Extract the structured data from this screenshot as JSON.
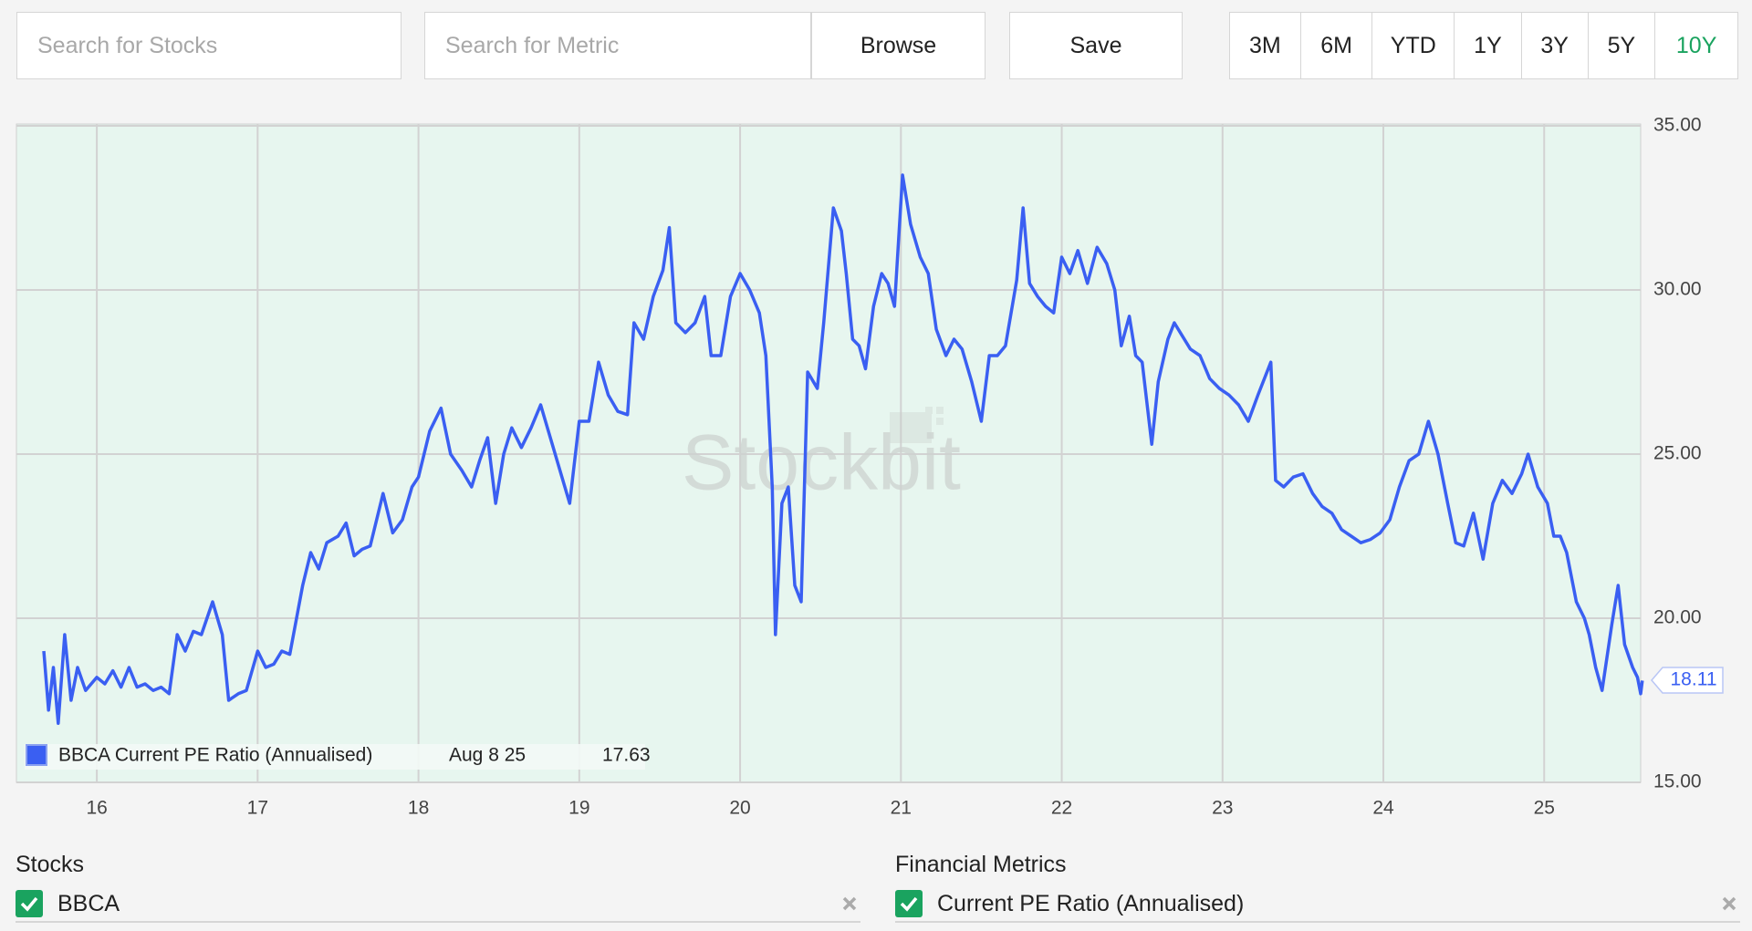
{
  "search": {
    "stocks_placeholder": "Search for Stocks",
    "metric_placeholder": "Search for Metric"
  },
  "buttons": {
    "browse": "Browse",
    "save": "Save"
  },
  "ranges": [
    "3M",
    "6M",
    "YTD",
    "1Y",
    "3Y",
    "5Y",
    "10Y"
  ],
  "active_range": "10Y",
  "watermark": "Stockbit",
  "chart_data": {
    "type": "line",
    "x": [
      15.67,
      15.7,
      15.73,
      15.76,
      15.8,
      15.84,
      15.88,
      15.93,
      16.0,
      16.05,
      16.1,
      16.15,
      16.2,
      16.25,
      16.3,
      16.35,
      16.4,
      16.45,
      16.5,
      16.55,
      16.6,
      16.65,
      16.72,
      16.78,
      16.82,
      16.88,
      16.93,
      17.0,
      17.05,
      17.1,
      17.15,
      17.2,
      17.28,
      17.33,
      17.38,
      17.43,
      17.5,
      17.55,
      17.6,
      17.65,
      17.7,
      17.78,
      17.84,
      17.9,
      17.96,
      18.0,
      18.07,
      18.14,
      18.2,
      18.27,
      18.33,
      18.38,
      18.43,
      18.48,
      18.53,
      18.58,
      18.64,
      18.7,
      18.76,
      18.82,
      18.88,
      18.94,
      19.0,
      19.06,
      19.12,
      19.18,
      19.24,
      19.3,
      19.34,
      19.4,
      19.46,
      19.52,
      19.56,
      19.6,
      19.66,
      19.72,
      19.78,
      19.82,
      19.88,
      19.94,
      20.0,
      20.06,
      20.12,
      20.16,
      20.2,
      20.22,
      20.26,
      20.3,
      20.34,
      20.38,
      20.42,
      20.48,
      20.52,
      20.58,
      20.63,
      20.66,
      20.7,
      20.74,
      20.78,
      20.83,
      20.88,
      20.92,
      20.96,
      21.01,
      21.06,
      21.12,
      21.17,
      21.22,
      21.28,
      21.33,
      21.38,
      21.44,
      21.5,
      21.55,
      21.6,
      21.65,
      21.72,
      21.76,
      21.8,
      21.85,
      21.9,
      21.95,
      22.0,
      22.05,
      22.1,
      22.16,
      22.22,
      22.28,
      22.33,
      22.37,
      22.42,
      22.46,
      22.5,
      22.56,
      22.6,
      22.66,
      22.7,
      22.75,
      22.8,
      22.86,
      22.92,
      22.98,
      23.04,
      23.1,
      23.16,
      23.22,
      23.3,
      23.33,
      23.38,
      23.44,
      23.5,
      23.56,
      23.62,
      23.68,
      23.74,
      23.8,
      23.86,
      23.92,
      23.98,
      24.04,
      24.1,
      24.16,
      24.22,
      24.28,
      24.34,
      24.4,
      24.45,
      24.5,
      24.56,
      24.62,
      24.68,
      24.74,
      24.8,
      24.86,
      24.9,
      24.96,
      25.02,
      25.06,
      25.1,
      25.14,
      25.2,
      25.25,
      25.28,
      25.32,
      25.36,
      25.42,
      25.46,
      25.5,
      25.55,
      25.58,
      25.6,
      25.61
    ],
    "series": [
      {
        "name": "BBCA Current PE Ratio (Annualised)",
        "color": "#3a5ff2",
        "values": [
          19.0,
          17.2,
          18.5,
          16.8,
          19.5,
          17.5,
          18.5,
          17.8,
          18.2,
          18.0,
          18.4,
          17.9,
          18.5,
          17.9,
          18.0,
          17.8,
          17.9,
          17.7,
          19.5,
          19.0,
          19.6,
          19.5,
          20.5,
          19.5,
          17.5,
          17.7,
          17.8,
          19.0,
          18.5,
          18.6,
          19.0,
          18.9,
          21.0,
          22.0,
          21.5,
          22.3,
          22.5,
          22.9,
          21.9,
          22.1,
          22.2,
          23.8,
          22.6,
          23.0,
          24.0,
          24.3,
          25.7,
          26.4,
          25.0,
          24.5,
          24.0,
          24.8,
          25.5,
          23.5,
          25.0,
          25.8,
          25.2,
          25.8,
          26.5,
          25.5,
          24.5,
          23.5,
          26.0,
          26.0,
          27.8,
          26.8,
          26.3,
          26.2,
          29.0,
          28.5,
          29.8,
          30.6,
          31.9,
          29.0,
          28.7,
          29.0,
          29.8,
          28.0,
          28.0,
          29.8,
          30.5,
          30.0,
          29.3,
          28.0,
          24.0,
          19.5,
          23.5,
          24.0,
          21.0,
          20.5,
          27.5,
          27.0,
          29.0,
          32.5,
          31.8,
          30.5,
          28.5,
          28.3,
          27.6,
          29.5,
          30.5,
          30.2,
          29.5,
          33.5,
          32.0,
          31.0,
          30.5,
          28.8,
          28.0,
          28.5,
          28.2,
          27.2,
          26.0,
          28.0,
          28.0,
          28.3,
          30.3,
          32.5,
          30.2,
          29.8,
          29.5,
          29.3,
          31.0,
          30.5,
          31.2,
          30.2,
          31.3,
          30.8,
          30.0,
          28.3,
          29.2,
          28.0,
          27.8,
          25.3,
          27.2,
          28.5,
          29.0,
          28.6,
          28.2,
          28.0,
          27.3,
          27.0,
          26.8,
          26.5,
          26.0,
          26.8,
          27.8,
          24.2,
          24.0,
          24.3,
          24.4,
          23.8,
          23.4,
          23.2,
          22.7,
          22.5,
          22.3,
          22.4,
          22.6,
          23.0,
          24.0,
          24.8,
          25.0,
          26.0,
          25.0,
          23.5,
          22.3,
          22.2,
          23.2,
          21.8,
          23.5,
          24.2,
          23.8,
          24.4,
          25.0,
          24.0,
          23.5,
          22.5,
          22.5,
          22.0,
          20.5,
          20.0,
          19.5,
          18.5,
          17.8,
          19.8,
          21.0,
          19.2,
          18.5,
          18.2,
          17.7,
          18.1
        ]
      }
    ],
    "xlim": [
      15.5,
      25.6
    ],
    "ylim": [
      15,
      35
    ],
    "xticks": [
      16,
      17,
      18,
      19,
      20,
      21,
      22,
      23,
      24,
      25
    ],
    "yticks": [
      {
        "value": 15,
        "label": "15.00"
      },
      {
        "value": 20,
        "label": "20.00"
      },
      {
        "value": 25,
        "label": "25.00"
      },
      {
        "value": 30,
        "label": "30.00"
      },
      {
        "value": 35,
        "label": "35.00"
      }
    ],
    "grid": true,
    "last_value": 18.11,
    "hover": {
      "date": "Aug 8 25",
      "value": 17.63
    }
  },
  "stocks": {
    "title": "Stocks",
    "items": [
      "BBCA"
    ]
  },
  "metrics": {
    "title": "Financial Metrics",
    "items": [
      "Current PE Ratio (Annualised)"
    ]
  }
}
